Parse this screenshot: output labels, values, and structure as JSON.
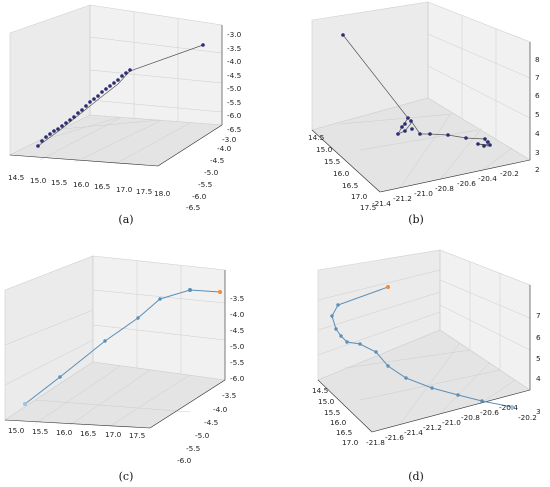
{
  "chart_data": [
    {
      "caption": "(a)",
      "type": "scatter3d",
      "grid": true,
      "xlim": [
        14.5,
        18.0
      ],
      "ylim": [
        -6.5,
        -3.0
      ],
      "zlim": [
        -6.5,
        -3.0
      ],
      "x_ticks": [
        "14.5",
        "15.0",
        "15.5",
        "16.0",
        "16.5",
        "17.0",
        "17.5",
        "18.0"
      ],
      "y_ticks": [
        "-3.0",
        "-3.5",
        "-4.0",
        "-4.5",
        "-5.0",
        "-5.5",
        "-6.0",
        "-6.5"
      ],
      "z_ticks": [
        "-3.0",
        "-3.5",
        "-4.0",
        "-4.5",
        "-5.0",
        "-5.5",
        "-6.0",
        "-6.5"
      ],
      "marker_color": "#2c2c72",
      "line_color": "#555555"
    },
    {
      "caption": "(b)",
      "type": "scatter3d",
      "grid": true,
      "xlim": [
        14.5,
        17.5
      ],
      "ylim": [
        -21.4,
        -20.2
      ],
      "zlim": [
        2,
        8
      ],
      "x_ticks": [
        "14.5",
        "15.0",
        "15.5",
        "16.0",
        "16.5",
        "17.0",
        "17.5"
      ],
      "y_ticks": [
        "-21.4",
        "-21.2",
        "-21.0",
        "-20.8",
        "-20.6",
        "-20.4",
        "-20.2"
      ],
      "z_ticks": [
        "2",
        "3",
        "4",
        "5",
        "6",
        "7",
        "8"
      ],
      "marker_color": "#2c2c72",
      "line_color": "#555555"
    },
    {
      "caption": "(c)",
      "type": "line3d",
      "grid": true,
      "xlim": [
        14.5,
        18.0
      ],
      "ylim": [
        -6.0,
        -3.5
      ],
      "zlim": [
        -6.0,
        -3.5
      ],
      "x_ticks": [
        "15.0",
        "15.5",
        "16.0",
        "16.5",
        "17.0",
        "17.5"
      ],
      "y_ticks": [
        "-3.5",
        "-4.0",
        "-4.5",
        "-5.0",
        "-5.5",
        "-6.0"
      ],
      "z_ticks": [
        "-3.5",
        "-4.0",
        "-4.5",
        "-5.0",
        "-5.5",
        "-6.0"
      ],
      "line_color": "#5a8fb8",
      "start_color": "#9cc3df",
      "end_color": "#ef8a3c"
    },
    {
      "caption": "(d)",
      "type": "line3d",
      "grid": true,
      "xlim": [
        14.5,
        17.0
      ],
      "ylim": [
        -21.8,
        -20.2
      ],
      "zlim": [
        3,
        7
      ],
      "x_ticks": [
        "14.5",
        "15.0",
        "15.5",
        "16.0",
        "16.5",
        "17.0"
      ],
      "y_ticks": [
        "-21.8",
        "-21.6",
        "-21.4",
        "-21.2",
        "-21.0",
        "-20.8",
        "-20.6",
        "-20.4",
        "-20.2"
      ],
      "z_ticks": [
        "3",
        "4",
        "5",
        "6",
        "7"
      ],
      "line_color": "#5a8fb8",
      "start_color": "#9cc3df",
      "end_color": "#ef8a3c"
    }
  ]
}
